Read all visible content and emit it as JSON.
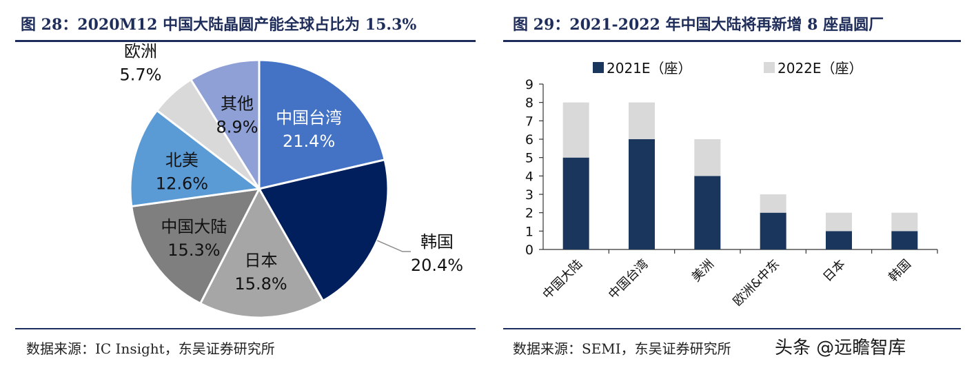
{
  "left": {
    "title": "图 28：2020M12 中国大陆晶圆产能全球占比为 15.3%",
    "source": "数据来源：IC Insight，东吴证券研究所",
    "chart_data": {
      "type": "pie",
      "slices": [
        {
          "name": "中国台湾",
          "value": 21.4,
          "label": "21.4%",
          "color": "#4472c4"
        },
        {
          "name": "韩国",
          "value": 20.4,
          "label": "20.4%",
          "color": "#001f5c"
        },
        {
          "name": "日本",
          "value": 15.8,
          "label": "15.8%",
          "color": "#a6a6a6"
        },
        {
          "name": "中国大陆",
          "value": 15.3,
          "label": "15.3%",
          "color": "#7f7f7f"
        },
        {
          "name": "北美",
          "value": 12.6,
          "label": "12.6%",
          "color": "#5b9bd5"
        },
        {
          "name": "欧洲",
          "value": 5.7,
          "label": "5.7%",
          "color": "#d9d9d9"
        },
        {
          "name": "其他",
          "value": 8.9,
          "label": "8.9%",
          "color": "#8ea0d6"
        }
      ]
    }
  },
  "right": {
    "title": "图 29：2021-2022 年中国大陆将再新增 8 座晶圆厂",
    "source": "数据来源：SEMI，东吴证券研究所",
    "watermark": "头条 @远瞻智库",
    "chart_data": {
      "type": "bar",
      "stacked": true,
      "categories": [
        "中国大陆",
        "中国台湾",
        "美洲",
        "欧洲&中东",
        "日本",
        "韩国"
      ],
      "series": [
        {
          "name": "2021E（座）",
          "values": [
            5,
            6,
            4,
            2,
            1,
            1
          ],
          "color": "#1b365d"
        },
        {
          "name": "2022E（座）",
          "values": [
            3,
            2,
            2,
            1,
            1,
            1
          ],
          "color": "#d9d9d9"
        }
      ],
      "ylim": [
        0,
        9
      ],
      "yticks": [
        0,
        1,
        2,
        3,
        4,
        5,
        6,
        7,
        8,
        9
      ],
      "legend": "top"
    }
  }
}
